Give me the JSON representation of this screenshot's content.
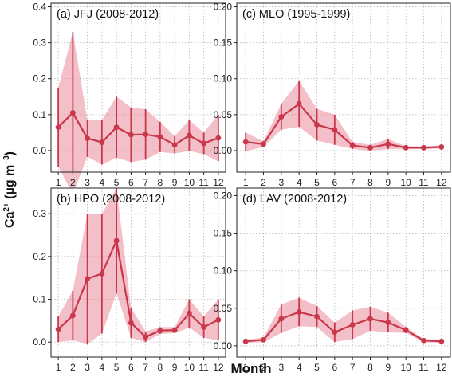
{
  "figure": {
    "xlabel": "Month",
    "ylabel_main": "Ca",
    "ylabel_sup1": "2+",
    "ylabel_units": " (µg m",
    "ylabel_sup2": "−3",
    "ylabel_close": ")"
  },
  "colors": {
    "line": "#c8374a",
    "band": "#e98b9b",
    "grid": "#bdbdbd"
  },
  "chart_data": [
    {
      "type": "line",
      "title": "(a) JFJ (2008-2012)",
      "x": [
        1,
        2,
        3,
        4,
        5,
        6,
        7,
        8,
        9,
        10,
        11,
        12
      ],
      "xticks": [
        "1",
        "2",
        "3",
        "4",
        "5",
        "6",
        "7",
        "8",
        "9",
        "10",
        "11",
        "12"
      ],
      "ylim": [
        -0.06,
        0.41
      ],
      "yticks": [
        0.0,
        0.1,
        0.2,
        0.3,
        0.4
      ],
      "ytick_labels": [
        "0.0",
        "0.1",
        "0.2",
        "0.3",
        "0.4"
      ],
      "grid": true,
      "series": [
        {
          "values": [
            0.065,
            0.105,
            0.034,
            0.023,
            0.065,
            0.044,
            0.045,
            0.038,
            0.016,
            0.042,
            0.02,
            0.035
          ],
          "upper": [
            0.175,
            0.33,
            0.085,
            0.085,
            0.15,
            0.12,
            0.115,
            0.08,
            0.04,
            0.085,
            0.05,
            0.1
          ],
          "lower": [
            -0.045,
            -0.12,
            -0.017,
            -0.039,
            -0.02,
            -0.032,
            -0.025,
            -0.004,
            -0.008,
            -0.001,
            -0.01,
            -0.03
          ]
        }
      ]
    },
    {
      "type": "line",
      "title": "(c) MLO (1995-1999)",
      "x": [
        1,
        2,
        3,
        4,
        5,
        6,
        7,
        8,
        9,
        10,
        11,
        12
      ],
      "xticks": [
        "1",
        "2",
        "3",
        "4",
        "5",
        "6",
        "7",
        "8",
        "9",
        "10",
        "11",
        "12"
      ],
      "ylim": [
        -0.03,
        0.205
      ],
      "yticks": [
        0.0,
        0.05,
        0.1,
        0.15,
        0.2
      ],
      "ytick_labels": [
        "0.00",
        "0.05",
        "0.10",
        "0.15",
        "0.20"
      ],
      "grid": true,
      "series": [
        {
          "values": [
            0.012,
            0.009,
            0.047,
            0.065,
            0.036,
            0.029,
            0.007,
            0.004,
            0.009,
            0.004,
            0.004,
            0.005
          ],
          "upper": [
            0.025,
            0.013,
            0.065,
            0.097,
            0.058,
            0.05,
            0.012,
            0.008,
            0.016,
            0.006,
            0.006,
            0.007
          ],
          "lower": [
            -0.001,
            0.005,
            0.029,
            0.033,
            0.014,
            0.008,
            0.002,
            0.0,
            0.002,
            0.002,
            0.002,
            0.003
          ]
        }
      ]
    },
    {
      "type": "line",
      "title": "(b) HPO (2008-2012)",
      "x": [
        1,
        2,
        3,
        4,
        5,
        6,
        7,
        8,
        9,
        10,
        11,
        12
      ],
      "xticks": [
        "1",
        "2",
        "3",
        "4",
        "5",
        "6",
        "7",
        "8",
        "9",
        "10",
        "11",
        "12"
      ],
      "ylim": [
        -0.035,
        0.36
      ],
      "yticks": [
        0.0,
        0.1,
        0.2,
        0.3
      ],
      "ytick_labels": [
        "0.0",
        "0.1",
        "0.2",
        "0.3"
      ],
      "grid": true,
      "series": [
        {
          "values": [
            0.03,
            0.062,
            0.148,
            0.16,
            0.237,
            0.045,
            0.012,
            0.027,
            0.028,
            0.067,
            0.035,
            0.052
          ],
          "upper": [
            0.06,
            0.12,
            0.3,
            0.3,
            0.36,
            0.08,
            0.025,
            0.035,
            0.035,
            0.1,
            0.06,
            0.1
          ],
          "lower": [
            0.0,
            0.004,
            -0.004,
            0.02,
            0.114,
            0.01,
            0.0,
            0.019,
            0.021,
            0.034,
            0.01,
            0.004
          ]
        }
      ]
    },
    {
      "type": "line",
      "title": "(d) LAV (2008-2012)",
      "x": [
        1,
        2,
        3,
        4,
        5,
        6,
        7,
        8,
        9,
        10,
        11,
        12
      ],
      "xticks": [
        "1",
        "2",
        "3",
        "4",
        "5",
        "6",
        "7",
        "8",
        "9",
        "10",
        "11",
        "12"
      ],
      "ylim": [
        -0.015,
        0.21
      ],
      "yticks": [
        0.0,
        0.05,
        0.1,
        0.15,
        0.2
      ],
      "ytick_labels": [
        "0.00",
        "0.05",
        "0.10",
        "0.15",
        "0.20"
      ],
      "grid": true,
      "series": [
        {
          "values": [
            0.006,
            0.008,
            0.036,
            0.045,
            0.039,
            0.018,
            0.028,
            0.036,
            0.031,
            0.021,
            0.007,
            0.006
          ],
          "upper": [
            0.008,
            0.011,
            0.055,
            0.064,
            0.053,
            0.031,
            0.047,
            0.052,
            0.044,
            0.025,
            0.009,
            0.008
          ],
          "lower": [
            0.004,
            0.005,
            0.017,
            0.026,
            0.025,
            0.005,
            0.009,
            0.02,
            0.018,
            0.017,
            0.005,
            0.004
          ]
        }
      ]
    }
  ]
}
